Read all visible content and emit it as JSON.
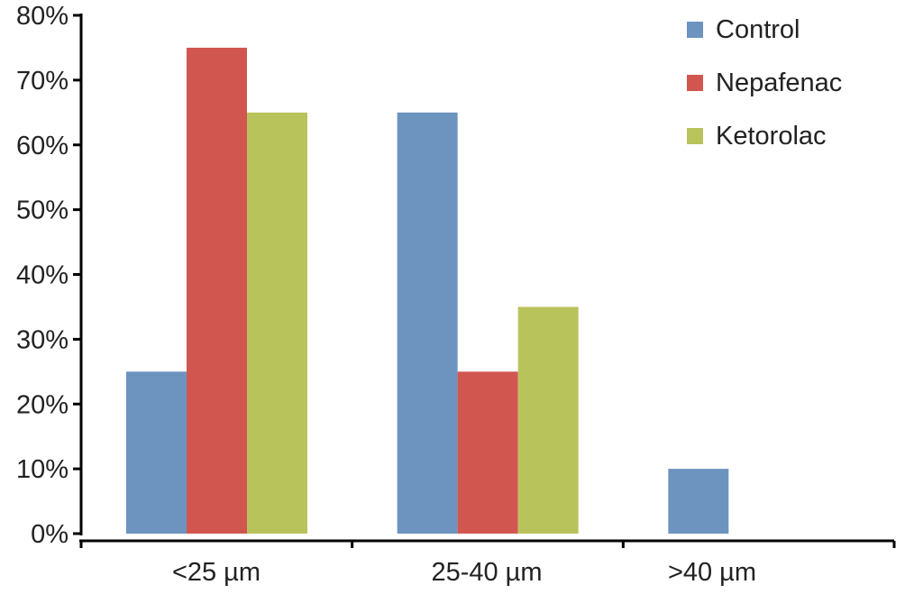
{
  "chart_data": {
    "type": "bar",
    "categories": [
      "<25 µm",
      "25-40 µm",
      ">40 µm"
    ],
    "series": [
      {
        "name": "Control",
        "color": "#6d93bf",
        "values": [
          25,
          65,
          10
        ]
      },
      {
        "name": "Nepafenac",
        "color": "#d15650",
        "values": [
          75,
          25,
          0
        ]
      },
      {
        "name": "Ketorolac",
        "color": "#b9c35c",
        "values": [
          65,
          35,
          0
        ]
      }
    ],
    "ylim": [
      0,
      80
    ],
    "yticks": [
      0,
      10,
      20,
      30,
      40,
      50,
      60,
      70,
      80
    ],
    "ytick_labels": [
      "0%",
      "10%",
      "20%",
      "30%",
      "40%",
      "50%",
      "60%",
      "70%",
      "80%"
    ],
    "grid": false,
    "legend_position": "top-right",
    "axis_color": "#000000"
  }
}
